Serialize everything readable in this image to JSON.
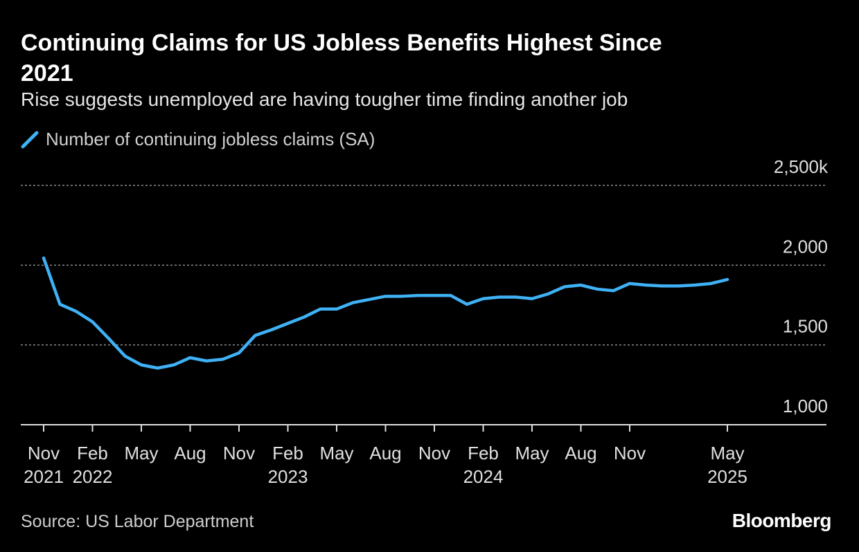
{
  "chart_data": {
    "type": "line",
    "title": "Continuing Claims for US Jobless Benefits Highest Since 2021",
    "subtitle": "Rise suggests unemployed are having tougher time finding another job",
    "source": "Source: US Labor Department",
    "brand": "Bloomberg",
    "x": [
      "2021-11",
      "2021-12",
      "2022-01",
      "2022-02",
      "2022-03",
      "2022-04",
      "2022-05",
      "2022-06",
      "2022-07",
      "2022-08",
      "2022-09",
      "2022-10",
      "2022-11",
      "2022-12",
      "2023-01",
      "2023-02",
      "2023-03",
      "2023-04",
      "2023-05",
      "2023-06",
      "2023-07",
      "2023-08",
      "2023-09",
      "2023-10",
      "2023-11",
      "2023-12",
      "2024-01",
      "2024-02",
      "2024-03",
      "2024-04",
      "2024-05",
      "2024-06",
      "2024-07",
      "2024-08",
      "2024-09",
      "2024-10",
      "2024-11",
      "2024-12",
      "2025-01",
      "2025-02",
      "2025-03",
      "2025-04",
      "2025-05"
    ],
    "series": [
      {
        "name": "Number of continuing jobless claims (SA)",
        "color": "#3fb1f5",
        "values": [
          2045,
          1755,
          1710,
          1645,
          1540,
          1430,
          1375,
          1355,
          1375,
          1420,
          1400,
          1410,
          1450,
          1560,
          1595,
          1635,
          1675,
          1725,
          1725,
          1765,
          1785,
          1805,
          1805,
          1810,
          1810,
          1810,
          1755,
          1790,
          1800,
          1800,
          1790,
          1820,
          1865,
          1875,
          1850,
          1840,
          1885,
          1875,
          1870,
          1870,
          1875,
          1885,
          1910
        ]
      }
    ],
    "xlim": [
      "2021-10",
      "2025-10"
    ],
    "xticks": [
      {
        "value": "2021-11",
        "label": "Nov"
      },
      {
        "value": "2022-02",
        "label": "Feb"
      },
      {
        "value": "2022-05",
        "label": "May"
      },
      {
        "value": "2022-08",
        "label": "Aug"
      },
      {
        "value": "2022-11",
        "label": "Nov"
      },
      {
        "value": "2023-02",
        "label": "Feb"
      },
      {
        "value": "2023-05",
        "label": "May"
      },
      {
        "value": "2023-08",
        "label": "Aug"
      },
      {
        "value": "2023-11",
        "label": "Nov"
      },
      {
        "value": "2024-02",
        "label": "Feb"
      },
      {
        "value": "2024-05",
        "label": "May"
      },
      {
        "value": "2024-08",
        "label": "Aug"
      },
      {
        "value": "2024-11",
        "label": "Nov"
      },
      {
        "value": "2025-05",
        "label": "May"
      }
    ],
    "xtick_years": [
      {
        "value": "2021-11",
        "label": "2021"
      },
      {
        "value": "2022-02",
        "label": "2022"
      },
      {
        "value": "2023-02",
        "label": "2023"
      },
      {
        "value": "2024-02",
        "label": "2024"
      },
      {
        "value": "2025-05",
        "label": "2025"
      }
    ],
    "ylim": [
      1000,
      2500
    ],
    "yticks": [
      {
        "value": 1000,
        "label": "1,000"
      },
      {
        "value": 1500,
        "label": "1,500"
      },
      {
        "value": 2000,
        "label": "2,000"
      },
      {
        "value": 2500,
        "label": "2,500k"
      }
    ],
    "grid": true
  }
}
